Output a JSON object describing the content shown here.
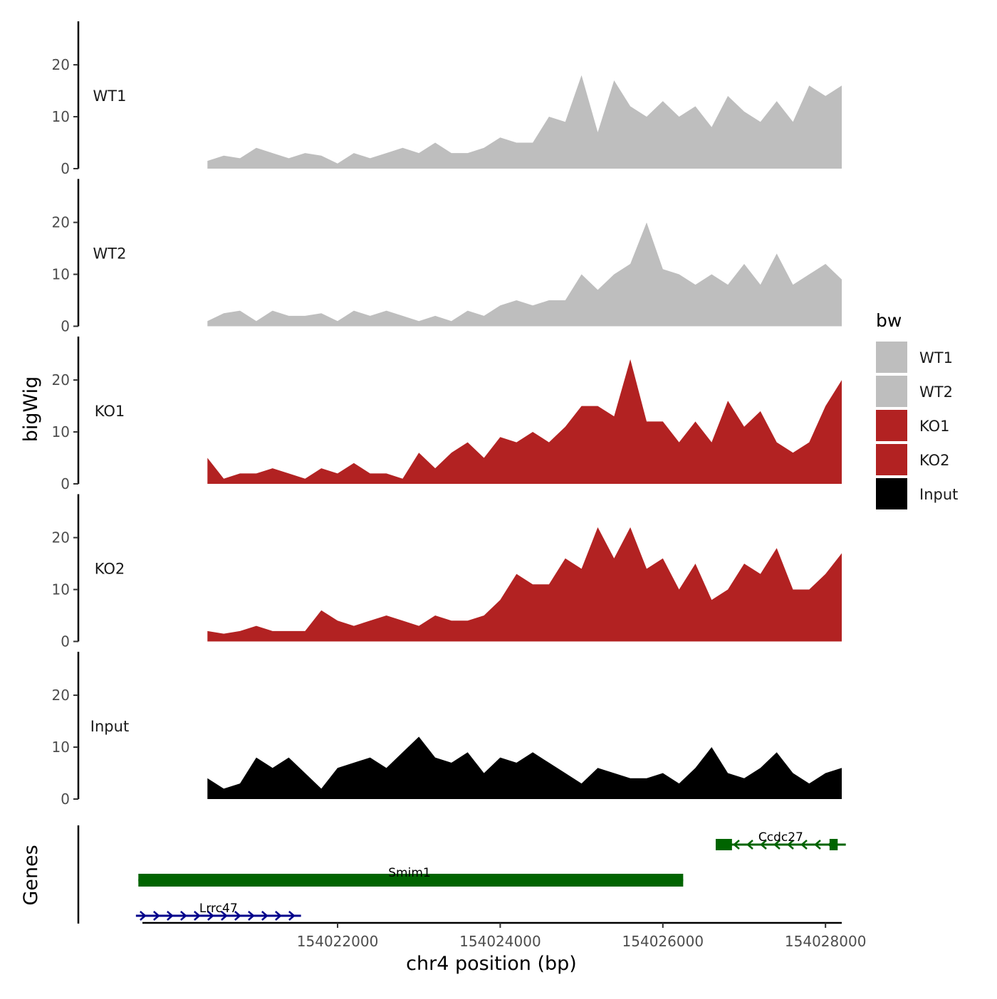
{
  "chart_data": {
    "type": "area",
    "title": "",
    "xlabel": "chr4 position (bp)",
    "ylabel": "bigWig",
    "genes_track_label": "Genes",
    "xlim": [
      154019600,
      154028200
    ],
    "x_ticks": [
      {
        "value": 154022000,
        "label": "154022000"
      },
      {
        "value": 154024000,
        "label": "154024000"
      },
      {
        "value": 154026000,
        "label": "154026000"
      },
      {
        "value": 154028000,
        "label": "154028000"
      }
    ],
    "ylim": [
      0,
      27
    ],
    "y_ticks": [
      {
        "value": 0,
        "label": "0"
      },
      {
        "value": 10,
        "label": "10"
      },
      {
        "value": 20,
        "label": "20"
      }
    ],
    "x": [
      154020400,
      154020600,
      154020800,
      154021000,
      154021200,
      154021400,
      154021600,
      154021800,
      154022000,
      154022200,
      154022400,
      154022600,
      154022800,
      154023000,
      154023200,
      154023400,
      154023600,
      154023800,
      154024000,
      154024200,
      154024400,
      154024600,
      154024800,
      154025000,
      154025200,
      154025400,
      154025600,
      154025800,
      154026000,
      154026200,
      154026400,
      154026600,
      154026800,
      154027000,
      154027200,
      154027400,
      154027600,
      154027800,
      154028000,
      154028200
    ],
    "series": [
      {
        "name": "WT1",
        "color": "#BEBEBE",
        "values": [
          1.5,
          2.5,
          2,
          4,
          3,
          2,
          3,
          2.5,
          1,
          3,
          2,
          3,
          4,
          3,
          5,
          3,
          3,
          4,
          6,
          5,
          5,
          10,
          9,
          18,
          7,
          17,
          12,
          10,
          13,
          10,
          12,
          8,
          14,
          11,
          9,
          13,
          9,
          16,
          14,
          16
        ]
      },
      {
        "name": "WT2",
        "color": "#BEBEBE",
        "values": [
          1,
          2.5,
          3,
          1,
          3,
          2,
          2,
          2.5,
          1,
          3,
          2,
          3,
          2,
          1,
          2,
          1,
          3,
          2,
          4,
          5,
          4,
          5,
          5,
          10,
          7,
          10,
          12,
          20,
          11,
          10,
          8,
          10,
          8,
          12,
          8,
          14,
          8,
          10,
          12,
          9
        ]
      },
      {
        "name": "KO1",
        "color": "#B22222",
        "values": [
          5,
          1,
          2,
          2,
          3,
          2,
          1,
          3,
          2,
          4,
          2,
          2,
          1,
          6,
          3,
          6,
          8,
          5,
          9,
          8,
          10,
          8,
          11,
          15,
          15,
          13,
          24,
          12,
          12,
          8,
          12,
          8,
          16,
          11,
          14,
          8,
          6,
          8,
          15,
          20
        ]
      },
      {
        "name": "KO2",
        "color": "#B22222",
        "values": [
          2,
          1.5,
          2,
          3,
          2,
          2,
          2,
          6,
          4,
          3,
          4,
          5,
          4,
          3,
          5,
          4,
          4,
          5,
          8,
          13,
          11,
          11,
          16,
          14,
          22,
          16,
          22,
          14,
          16,
          10,
          15,
          8,
          10,
          15,
          13,
          18,
          10,
          10,
          13,
          17
        ]
      },
      {
        "name": "Input",
        "color": "#000000",
        "values": [
          4,
          2,
          3,
          8,
          6,
          8,
          5,
          2,
          6,
          7,
          8,
          6,
          9,
          12,
          8,
          7,
          9,
          5,
          8,
          7,
          9,
          7,
          5,
          3,
          6,
          5,
          4,
          4,
          5,
          3,
          6,
          10,
          5,
          4,
          6,
          9,
          5,
          3,
          5,
          6
        ]
      }
    ],
    "legend": {
      "title": "bw",
      "position": "right",
      "entries": [
        {
          "label": "WT1",
          "color": "#BEBEBE"
        },
        {
          "label": "WT2",
          "color": "#BEBEBE"
        },
        {
          "label": "KO1",
          "color": "#B22222"
        },
        {
          "label": "KO2",
          "color": "#B22222"
        },
        {
          "label": "Input",
          "color": "#000000"
        }
      ]
    },
    "genes": [
      {
        "name": "Ccdc27",
        "start": 154026650,
        "end": 154028250,
        "strand": "-",
        "color": "#006400",
        "row": 0,
        "exons": [
          [
            154026650,
            154026850
          ],
          [
            154028050,
            154028150
          ]
        ]
      },
      {
        "name": "Smim1",
        "start": 154019550,
        "end": 154026250,
        "strand": "-",
        "color": "#006400",
        "row": 1,
        "exons": [
          [
            154019550,
            154026250
          ]
        ]
      },
      {
        "name": "Lrrc47",
        "start": 154019520,
        "end": 154021550,
        "strand": "+",
        "color": "#00008B",
        "row": 2,
        "exons": []
      }
    ]
  }
}
